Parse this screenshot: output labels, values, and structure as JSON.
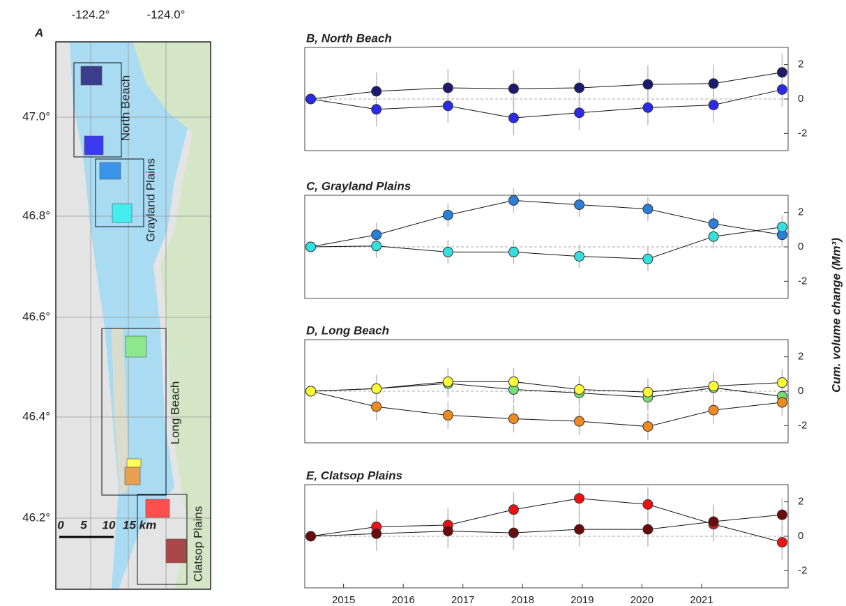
{
  "map": {
    "panel_label": "A",
    "lon_ticks": [
      "-124.2°",
      "-124.0°"
    ],
    "lat_ticks": [
      "47.0°",
      "46.8°",
      "46.6°",
      "46.4°",
      "46.2°"
    ],
    "regions": [
      "North Beach",
      "Grayland Plains",
      "Long Beach",
      "Clatsop Plains"
    ],
    "scale": [
      "0",
      "5",
      "10",
      "15 km"
    ]
  },
  "y_label": "Cum. volume change (Mm³)",
  "chart_data": [
    {
      "type": "line",
      "title": "B, North Beach",
      "xlim": [
        2014.35,
        2022.45
      ],
      "ylim": [
        -3,
        3
      ],
      "yticks": [
        -2,
        0,
        2
      ],
      "hline": 0,
      "x": [
        2014.45,
        2015.55,
        2016.75,
        2017.85,
        2018.95,
        2020.1,
        2021.2,
        2022.35
      ],
      "series": [
        {
          "color": "#1a1a6e",
          "values": [
            0,
            0.45,
            0.65,
            0.6,
            0.65,
            0.85,
            0.9,
            1.55
          ],
          "errors": [
            0,
            1.1,
            1.1,
            1.1,
            1.1,
            1.1,
            1.1,
            1.1
          ]
        },
        {
          "color": "#2a2ae8",
          "values": [
            0,
            -0.6,
            -0.4,
            -1.1,
            -0.8,
            -0.5,
            -0.35,
            0.55
          ],
          "errors": [
            0,
            1.0,
            1.0,
            1.0,
            1.0,
            1.0,
            1.0,
            1.0
          ]
        }
      ]
    },
    {
      "type": "line",
      "title": "C, Grayland Plains",
      "xlim": [
        2014.35,
        2022.45
      ],
      "ylim": [
        -3,
        3
      ],
      "yticks": [
        -2,
        0,
        2
      ],
      "hline": 0,
      "x": [
        2014.45,
        2015.55,
        2016.75,
        2017.85,
        2018.95,
        2020.1,
        2021.2,
        2022.35
      ],
      "series": [
        {
          "color": "#2a7fd8",
          "values": [
            0,
            0.7,
            1.85,
            2.7,
            2.45,
            2.2,
            1.35,
            0.7
          ],
          "errors": [
            0,
            0.7,
            0.7,
            0.7,
            0.7,
            0.7,
            0.7,
            0.7
          ]
        },
        {
          "color": "#33e0e0",
          "values": [
            0,
            0.05,
            -0.3,
            -0.3,
            -0.55,
            -0.7,
            0.6,
            1.15
          ],
          "errors": [
            0,
            0.7,
            0.7,
            0.7,
            0.7,
            0.7,
            0.7,
            0.7
          ]
        }
      ]
    },
    {
      "type": "line",
      "title": "D, Long Beach",
      "xlim": [
        2014.35,
        2022.45
      ],
      "ylim": [
        -3,
        3
      ],
      "yticks": [
        -2,
        0,
        2
      ],
      "hline": 0,
      "x": [
        2014.45,
        2015.55,
        2016.75,
        2017.85,
        2018.95,
        2020.1,
        2021.2,
        2022.35
      ],
      "series": [
        {
          "color": "#77dd77",
          "values": [
            0,
            0.15,
            0.45,
            0.1,
            -0.1,
            -0.35,
            0.2,
            -0.3
          ],
          "errors": [
            0,
            0.8,
            0.8,
            0.8,
            0.8,
            0.8,
            0.8,
            0.8
          ]
        },
        {
          "color": "#f08a20",
          "values": [
            0,
            -0.9,
            -1.4,
            -1.6,
            -1.75,
            -2.05,
            -1.1,
            -0.65
          ],
          "errors": [
            0,
            0.8,
            0.8,
            0.8,
            0.8,
            0.8,
            0.8,
            0.8
          ]
        },
        {
          "color": "#ffff33",
          "values": [
            0,
            0.15,
            0.55,
            0.55,
            0.1,
            -0.05,
            0.3,
            0.5
          ],
          "errors": [
            0,
            0.8,
            0.8,
            0.8,
            0.8,
            0.8,
            0.8,
            0.8
          ]
        }
      ]
    },
    {
      "type": "line",
      "title": "E, Clatsop Plains",
      "xlim": [
        2014.35,
        2022.45
      ],
      "ylim": [
        -3,
        3
      ],
      "yticks": [
        -2,
        0,
        2
      ],
      "hline": 0,
      "xticks": [
        2015,
        2016,
        2017,
        2018,
        2019,
        2020,
        2021
      ],
      "x": [
        2014.45,
        2015.55,
        2016.75,
        2017.85,
        2018.95,
        2020.1,
        2021.2,
        2022.35
      ],
      "series": [
        {
          "color": "#ee1111",
          "values": [
            0,
            0.55,
            0.65,
            1.55,
            2.2,
            1.85,
            0.7,
            -0.35
          ],
          "errors": [
            0,
            1.0,
            1.0,
            1.0,
            1.0,
            1.0,
            1.0,
            1.0
          ]
        },
        {
          "color": "#6b0c0c",
          "values": [
            0,
            0.15,
            0.3,
            0.2,
            0.4,
            0.4,
            0.85,
            1.25
          ],
          "errors": [
            0,
            1.0,
            1.0,
            1.0,
            1.0,
            1.0,
            1.0,
            1.0
          ]
        }
      ]
    }
  ]
}
